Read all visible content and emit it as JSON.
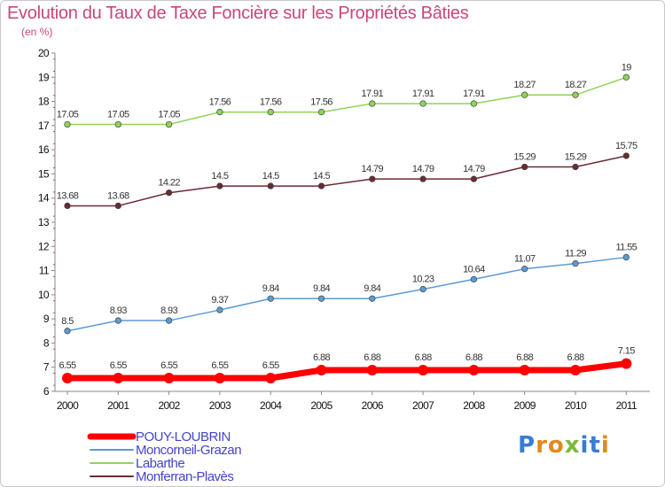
{
  "header": {
    "title": "Evolution du Taux de Taxe Foncière sur les Propriétés Bâties",
    "subtitle": "(en %)"
  },
  "logo": {
    "text": "Proxiti",
    "letters": [
      "P",
      "r",
      "o",
      "x",
      "i",
      "t",
      "i"
    ],
    "colors": [
      "#3a7bd5",
      "#e08a1e",
      "#e08a1e",
      "#7cb83a",
      "#3a7bd5",
      "#3a7bd5",
      "#e08a1e"
    ]
  },
  "chart_data": {
    "type": "line",
    "x": [
      "2000",
      "2001",
      "2002",
      "2003",
      "2004",
      "2005",
      "2006",
      "2007",
      "2008",
      "2009",
      "2010",
      "2011"
    ],
    "ylim": [
      6,
      20
    ],
    "yticks": [
      6,
      7,
      8,
      9,
      10,
      11,
      12,
      13,
      14,
      15,
      16,
      17,
      18,
      19,
      20
    ],
    "grid": false,
    "legend_position": "bottom-left",
    "series": [
      {
        "name": "POUY-LOUBRIN",
        "color": "#ff0000",
        "width": 7,
        "values": [
          6.55,
          6.55,
          6.55,
          6.55,
          6.55,
          6.88,
          6.88,
          6.88,
          6.88,
          6.88,
          6.88,
          7.15
        ],
        "labels": [
          "6.55",
          "6.55",
          "6.55",
          "6.55",
          "6.55",
          "6.88",
          "6.88",
          "6.88",
          "6.88",
          "6.88",
          "6.88",
          "7.15"
        ]
      },
      {
        "name": "Moncorneil-Grazan",
        "color": "#5b9bd5",
        "width": 1.5,
        "values": [
          8.5,
          8.93,
          8.93,
          9.37,
          9.84,
          9.84,
          9.84,
          10.23,
          10.64,
          11.07,
          11.29,
          11.55
        ],
        "labels": [
          "8.5",
          "8.93",
          "8.93",
          "9.37",
          "9.84",
          "9.84",
          "9.84",
          "10.23",
          "10.64",
          "11.07",
          "11.29",
          "11.55"
        ]
      },
      {
        "name": "Labarthe",
        "color": "#8fd45a",
        "width": 1.5,
        "values": [
          17.05,
          17.05,
          17.05,
          17.56,
          17.56,
          17.56,
          17.91,
          17.91,
          17.91,
          18.27,
          18.27,
          19
        ],
        "labels": [
          "17.05",
          "17.05",
          "17.05",
          "17.56",
          "17.56",
          "17.56",
          "17.91",
          "17.91",
          "17.91",
          "18.27",
          "18.27",
          "19"
        ]
      },
      {
        "name": "Monferran-Plavès",
        "color": "#6b2a32",
        "width": 1.5,
        "values": [
          13.68,
          13.68,
          14.22,
          14.5,
          14.5,
          14.5,
          14.79,
          14.79,
          14.79,
          15.29,
          15.29,
          15.75
        ],
        "labels": [
          "13.68",
          "13.68",
          "14.22",
          "14.5",
          "14.5",
          "14.5",
          "14.79",
          "14.79",
          "14.79",
          "15.29",
          "15.29",
          "15.75"
        ]
      }
    ]
  }
}
